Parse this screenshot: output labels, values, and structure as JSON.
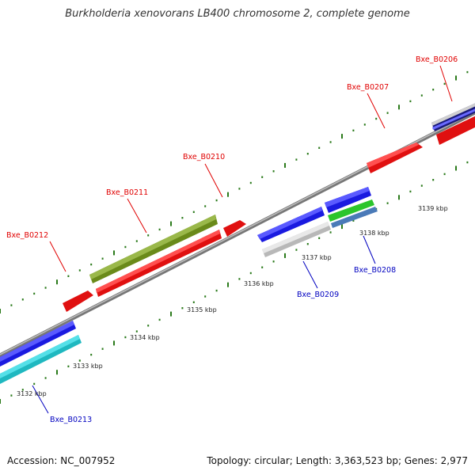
{
  "title": "Burkholderia xenovorans LB400 chromosome 2, complete genome",
  "footer": {
    "accession": "Accession: NC_007952",
    "summary": "Topology: circular; Length: 3,363,523 bp; Genes: 2,977"
  },
  "colors": {
    "forward_label": "#e00000",
    "reverse_label": "#0000c0",
    "backbone": "#8a8a8a",
    "tick": "#2a7a1a"
  },
  "kbp_labels": [
    {
      "text": "3132 kbp"
    },
    {
      "text": "3133 kbp"
    },
    {
      "text": "3134 kbp"
    },
    {
      "text": "3135 kbp"
    },
    {
      "text": "3136 kbp"
    },
    {
      "text": "3137 kbp"
    },
    {
      "text": "3138 kbp"
    },
    {
      "text": "3139 kbp"
    }
  ],
  "genes": [
    {
      "name": "Bxe_B0206",
      "strand": "forward"
    },
    {
      "name": "Bxe_B0207",
      "strand": "forward"
    },
    {
      "name": "Bxe_B0210",
      "strand": "forward"
    },
    {
      "name": "Bxe_B0211",
      "strand": "forward"
    },
    {
      "name": "Bxe_B0212",
      "strand": "forward"
    },
    {
      "name": "Bxe_B0208",
      "strand": "reverse"
    },
    {
      "name": "Bxe_B0209",
      "strand": "reverse"
    },
    {
      "name": "Bxe_B0213",
      "strand": "reverse"
    }
  ]
}
